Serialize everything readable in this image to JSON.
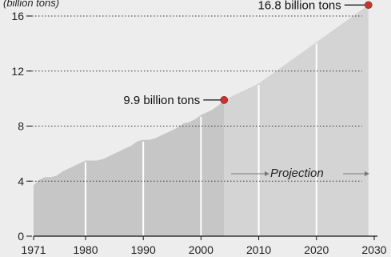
{
  "chart_data": {
    "type": "area",
    "ylabel": "(billion tons)",
    "x_ticks": [
      "1971",
      "1980",
      "1990",
      "2000",
      "2010",
      "2020",
      "2030"
    ],
    "y_ticks": [
      "0",
      "4",
      "8",
      "12",
      "16"
    ],
    "xlim": [
      1971,
      2030
    ],
    "ylim": [
      0,
      17.5
    ],
    "grid": "dotted horizontal lines at 4, 8, 12, 16; white vertical lines at decades",
    "series": [
      {
        "kind": "historical",
        "x": [
          1971,
          1972,
          1973,
          1974,
          1975,
          1976,
          1977,
          1978,
          1979,
          1980,
          1981,
          1982,
          1983,
          1984,
          1985,
          1986,
          1987,
          1988,
          1989,
          1990,
          1991,
          1992,
          1993,
          1994,
          1995,
          1996,
          1997,
          1998,
          1999,
          2000,
          2001,
          2002,
          2003,
          2004
        ],
        "values": [
          3.7,
          4.1,
          4.3,
          4.3,
          4.4,
          4.7,
          4.9,
          5.1,
          5.3,
          5.5,
          5.5,
          5.5,
          5.6,
          5.8,
          6.0,
          6.2,
          6.4,
          6.6,
          6.9,
          7.0,
          7.0,
          7.1,
          7.3,
          7.5,
          7.7,
          7.9,
          8.2,
          8.3,
          8.5,
          8.8,
          9.0,
          9.2,
          9.5,
          9.9
        ]
      },
      {
        "kind": "projection",
        "x": [
          2004,
          2010,
          2015,
          2020,
          2025,
          2029
        ],
        "values": [
          9.9,
          11.1,
          12.6,
          14.1,
          15.6,
          16.8
        ]
      }
    ],
    "annotations": [
      {
        "text": "9.9 billion tons",
        "x": 2004,
        "y": 9.9
      },
      {
        "text": "16.8 billion tons",
        "x": 2029,
        "y": 16.8
      }
    ],
    "projection_label": "Projection",
    "colors": {
      "background": "#ededed",
      "historical_fill": "#c6c6c6",
      "projection_fill": "#d4d4d4",
      "marker": "#c8342b",
      "decade_lines": "#ffffff"
    }
  }
}
